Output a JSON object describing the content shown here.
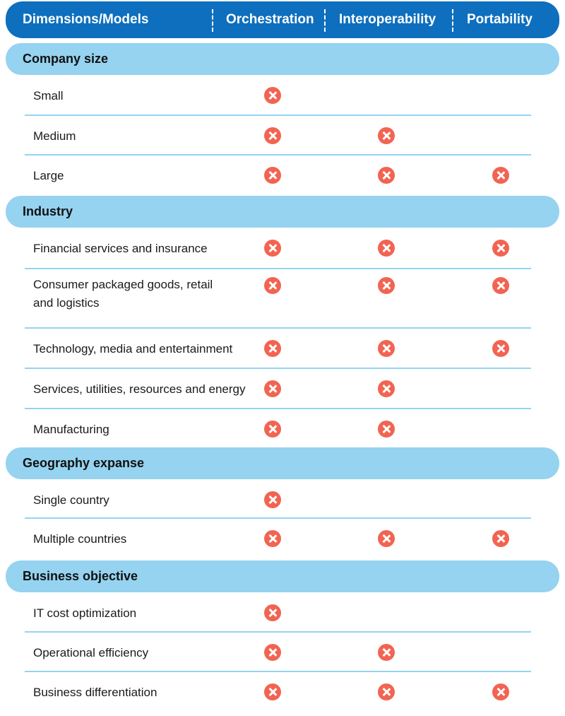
{
  "colors": {
    "header_bg": "#0d6fbe",
    "section_bg": "#95d3f0",
    "divider": "#95d3f0",
    "mark": "#f26452"
  },
  "header": {
    "dimensions_label": "Dimensions/Models",
    "models": [
      "Orchestration",
      "Interoperability",
      "Portability"
    ]
  },
  "sections": [
    {
      "title": "Company size",
      "rows": [
        {
          "label": "Small",
          "marks": [
            true,
            false,
            false
          ]
        },
        {
          "label": "Medium",
          "marks": [
            true,
            true,
            false
          ]
        },
        {
          "label": "Large",
          "marks": [
            true,
            true,
            true
          ]
        }
      ]
    },
    {
      "title": "Industry",
      "rows": [
        {
          "label": "Financial services and insurance",
          "marks": [
            true,
            true,
            true
          ]
        },
        {
          "label": "Consumer packaged goods, retail\nand logistics",
          "marks": [
            true,
            true,
            true
          ]
        },
        {
          "label": "Technology, media and entertainment",
          "marks": [
            true,
            true,
            true
          ]
        },
        {
          "label": "Services, utilities, resources and energy",
          "marks": [
            true,
            true,
            false
          ]
        },
        {
          "label": "Manufacturing",
          "marks": [
            true,
            true,
            false
          ]
        }
      ]
    },
    {
      "title": "Geography expanse",
      "rows": [
        {
          "label": "Single country",
          "marks": [
            true,
            false,
            false
          ]
        },
        {
          "label": "Multiple countries",
          "marks": [
            true,
            true,
            true
          ]
        }
      ]
    },
    {
      "title": "Business objective",
      "rows": [
        {
          "label": "IT cost optimization",
          "marks": [
            true,
            false,
            false
          ]
        },
        {
          "label": "Operational efficiency",
          "marks": [
            true,
            true,
            false
          ]
        },
        {
          "label": "Business differentiation",
          "marks": [
            true,
            true,
            true
          ]
        }
      ]
    }
  ],
  "mark_icon": "close-circle-icon"
}
